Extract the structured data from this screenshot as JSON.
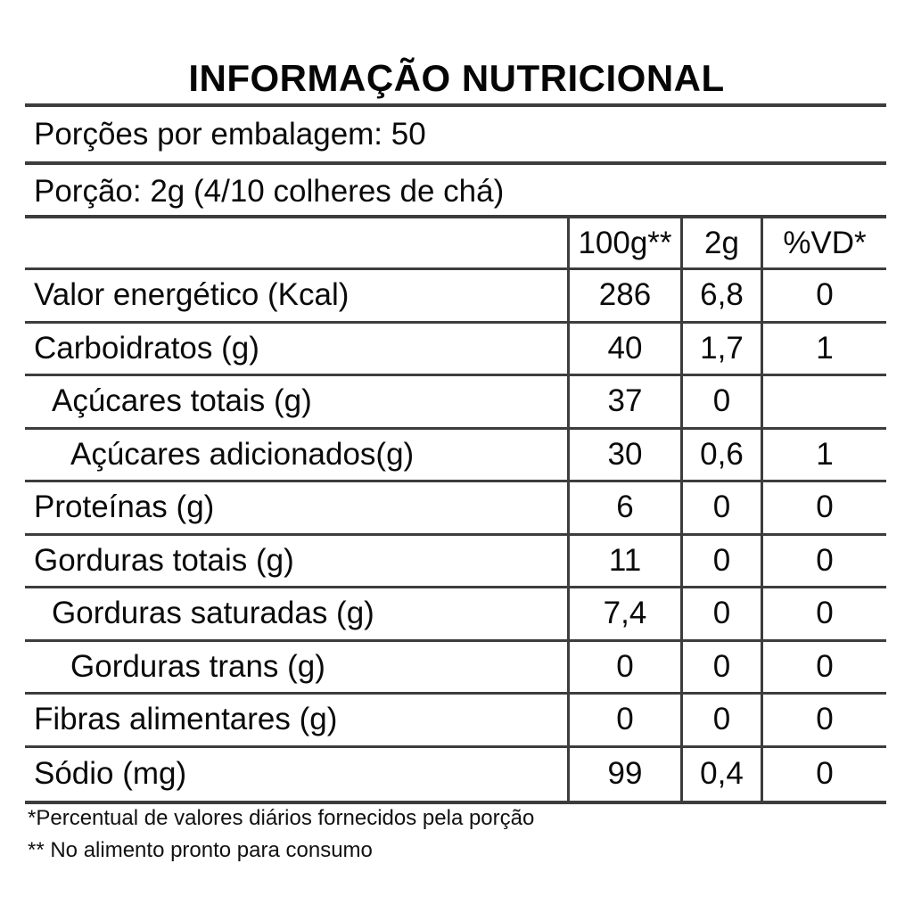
{
  "title": "INFORMAÇÃO NUTRICIONAL",
  "serving_info": {
    "servings_per_package": "Porções por embalagem: 50",
    "serving_size": "Porção: 2g (4/10 colheres de chá)"
  },
  "table": {
    "columns": {
      "per_100g": "100g**",
      "per_serving": "2g",
      "vd": "%VD*"
    },
    "rows": [
      {
        "label": "Valor energético (Kcal)",
        "per_100g": "286",
        "per_serving": "6,8",
        "vd": "0"
      },
      {
        "label": "Carboidratos (g)",
        "per_100g": "40",
        "per_serving": "1,7",
        "vd": "1"
      },
      {
        "label": "Açúcares totais (g)",
        "per_100g": "37",
        "per_serving": "0",
        "vd": ""
      },
      {
        "label": "Açúcares adicionados(g)",
        "per_100g": "30",
        "per_serving": "0,6",
        "vd": "1"
      },
      {
        "label": "Proteínas (g)",
        "per_100g": "6",
        "per_serving": "0",
        "vd": "0"
      },
      {
        "label": "Gorduras totais (g)",
        "per_100g": "11",
        "per_serving": "0",
        "vd": "0"
      },
      {
        "label": "Gorduras saturadas (g)",
        "per_100g": "7,4",
        "per_serving": "0",
        "vd": "0"
      },
      {
        "label": "Gorduras trans (g)",
        "per_100g": "0",
        "per_serving": "0",
        "vd": "0"
      },
      {
        "label": "Fibras alimentares (g)",
        "per_100g": "0",
        "per_serving": "0",
        "vd": "0"
      },
      {
        "label": "Sódio (mg)",
        "per_100g": "99",
        "per_serving": "0,4",
        "vd": "0"
      }
    ]
  },
  "footnotes": [
    "*Percentual de valores diários fornecidos pela porção",
    "** No alimento pronto para consumo"
  ],
  "colors": {
    "background": "#ffffff",
    "text": "#0a0a0a",
    "line": "#3d3d3d"
  }
}
